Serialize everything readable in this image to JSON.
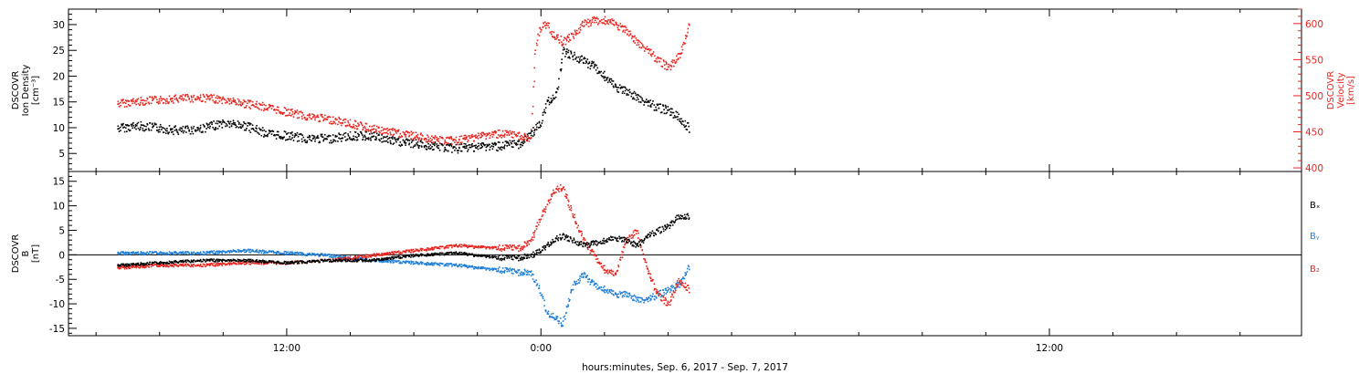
{
  "chart_data": [
    {
      "type": "scatter",
      "panel": "top",
      "xlabel": "hours:minutes, Sep.  6, 2017 - Sep.  7, 2017",
      "x_ticklabels": [
        "12:00",
        "0:00",
        "12:00"
      ],
      "left_axis": {
        "label_lines": [
          "DSCOVR",
          "Ion Density",
          "[cm⁻³]"
        ],
        "range": [
          1.5,
          33
        ],
        "ticks": [
          5,
          10,
          15,
          20,
          25,
          30
        ],
        "color": "#000000"
      },
      "right_axis": {
        "label_lines": [
          "DSCOVR",
          "Velocity",
          "[km/s]"
        ],
        "range": [
          395,
          620
        ],
        "ticks": [
          400,
          450,
          500,
          550,
          600
        ],
        "color": "#e8251f"
      },
      "series": [
        {
          "color": "#000000",
          "axis": "left",
          "x": [
            -20,
            -19,
            -18,
            -17,
            -16,
            -15,
            -14,
            -13,
            -12,
            -11,
            -10,
            -9,
            -8,
            -7,
            -6,
            -5,
            -4,
            -3,
            -2,
            -1,
            -0.5,
            0,
            0.25,
            0.75,
            1,
            1.5,
            2,
            2.5,
            3,
            3.5,
            4,
            4.5,
            5,
            5.5,
            6,
            6.5,
            7
          ],
          "y": [
            10,
            10.5,
            10,
            9.5,
            10,
            11,
            10.5,
            9,
            8.5,
            8,
            8,
            8.5,
            8.5,
            7.5,
            7,
            6.5,
            6,
            6.5,
            6.5,
            7,
            9,
            11,
            15,
            17,
            25,
            24,
            23,
            22,
            20,
            18,
            17,
            16,
            15,
            14,
            13.5,
            12,
            10
          ]
        },
        {
          "color": "#e8251f",
          "axis": "right",
          "x": [
            -20,
            -19,
            -18,
            -17,
            -16,
            -15,
            -14,
            -13,
            -12,
            -11,
            -10,
            -9,
            -8,
            -7,
            -6,
            -5,
            -4,
            -3,
            -2,
            -1,
            -0.5,
            -0.3,
            -0.1,
            0,
            0.25,
            0.5,
            1,
            1.5,
            2,
            2.5,
            3,
            3.5,
            4,
            4.5,
            5,
            5.5,
            6,
            6.5,
            7
          ],
          "y": [
            490,
            493,
            495,
            497,
            498,
            495,
            490,
            485,
            478,
            472,
            468,
            462,
            455,
            450,
            445,
            440,
            438,
            445,
            448,
            445,
            440,
            560,
            590,
            595,
            600,
            588,
            575,
            585,
            600,
            605,
            605,
            600,
            590,
            575,
            565,
            550,
            540,
            555,
            600
          ]
        }
      ]
    },
    {
      "type": "scatter",
      "panel": "bottom",
      "x_ticklabels": [
        "12:00",
        "0:00",
        "12:00"
      ],
      "y_axis": {
        "label_lines": [
          "DSCOVR",
          "B",
          "[nT]"
        ],
        "range": [
          -16.5,
          17
        ],
        "ticks": [
          -15,
          -10,
          -5,
          0,
          5,
          10,
          15
        ]
      },
      "legend": [
        "Bₓ",
        "Bᵧ",
        "B₂"
      ],
      "series": [
        {
          "color": "#000000",
          "x": [
            -20,
            -18,
            -16,
            -14,
            -12,
            -10,
            -8,
            -6,
            -4,
            -2,
            -1,
            -0.5,
            0,
            0.5,
            1,
            1.5,
            2,
            2.5,
            3,
            3.5,
            4,
            4.5,
            5,
            5.5,
            6,
            6.5,
            7
          ],
          "y": [
            -2,
            -1.5,
            -1,
            -1,
            -1.5,
            -1,
            -1,
            0,
            0.5,
            -0.5,
            -0.5,
            0,
            1,
            3,
            4,
            3,
            2,
            2.5,
            3,
            3.5,
            3,
            2,
            4,
            5,
            6,
            8,
            8
          ]
        },
        {
          "color": "#1f7fd6",
          "x": [
            -20,
            -18,
            -16,
            -14,
            -12,
            -10,
            -8,
            -6,
            -4,
            -2,
            -1,
            -0.5,
            0,
            0.25,
            0.5,
            1,
            1.5,
            2,
            2.5,
            3,
            3.5,
            4,
            4.5,
            5,
            5.5,
            6,
            6.5,
            7
          ],
          "y": [
            0.5,
            0.5,
            0.5,
            1,
            0.5,
            0,
            -1,
            -1.5,
            -2,
            -3,
            -3.5,
            -3.5,
            -8,
            -12,
            -12,
            -14,
            -6,
            -4,
            -6,
            -7,
            -8,
            -8,
            -9,
            -9,
            -8,
            -7,
            -6,
            -2
          ]
        },
        {
          "color": "#e8251f",
          "x": [
            -20,
            -18,
            -16,
            -14,
            -12,
            -10,
            -8,
            -6,
            -4,
            -2,
            -1,
            -0.5,
            0,
            0.25,
            0.5,
            1,
            1.5,
            2,
            2.5,
            3,
            3.5,
            4,
            4.5,
            5,
            5.5,
            6,
            6.5,
            7
          ],
          "y": [
            -2.5,
            -2,
            -2,
            -1.5,
            -1.5,
            -1,
            0,
            1,
            2,
            1.5,
            1.5,
            3,
            8,
            10,
            13,
            14,
            8,
            3,
            0,
            -3,
            -4,
            3,
            5,
            -3,
            -8,
            -10,
            -5,
            -7
          ]
        }
      ]
    }
  ]
}
